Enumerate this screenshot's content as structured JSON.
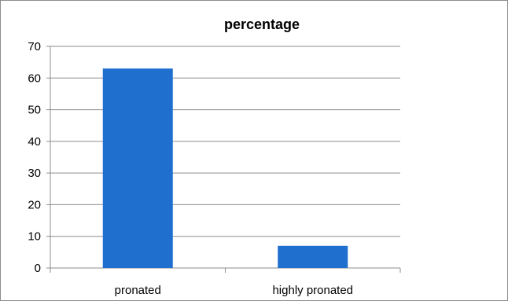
{
  "chart_data": {
    "type": "bar",
    "title": "percentage",
    "categories": [
      "pronated",
      "highly pronated"
    ],
    "values": [
      63,
      7
    ],
    "ylim": [
      0,
      70
    ],
    "yticks": [
      0,
      10,
      20,
      30,
      40,
      50,
      60,
      70
    ],
    "grid": true,
    "legend": "none",
    "bar_color": "#1f6fce",
    "grid_color": "#8c8c8c"
  }
}
